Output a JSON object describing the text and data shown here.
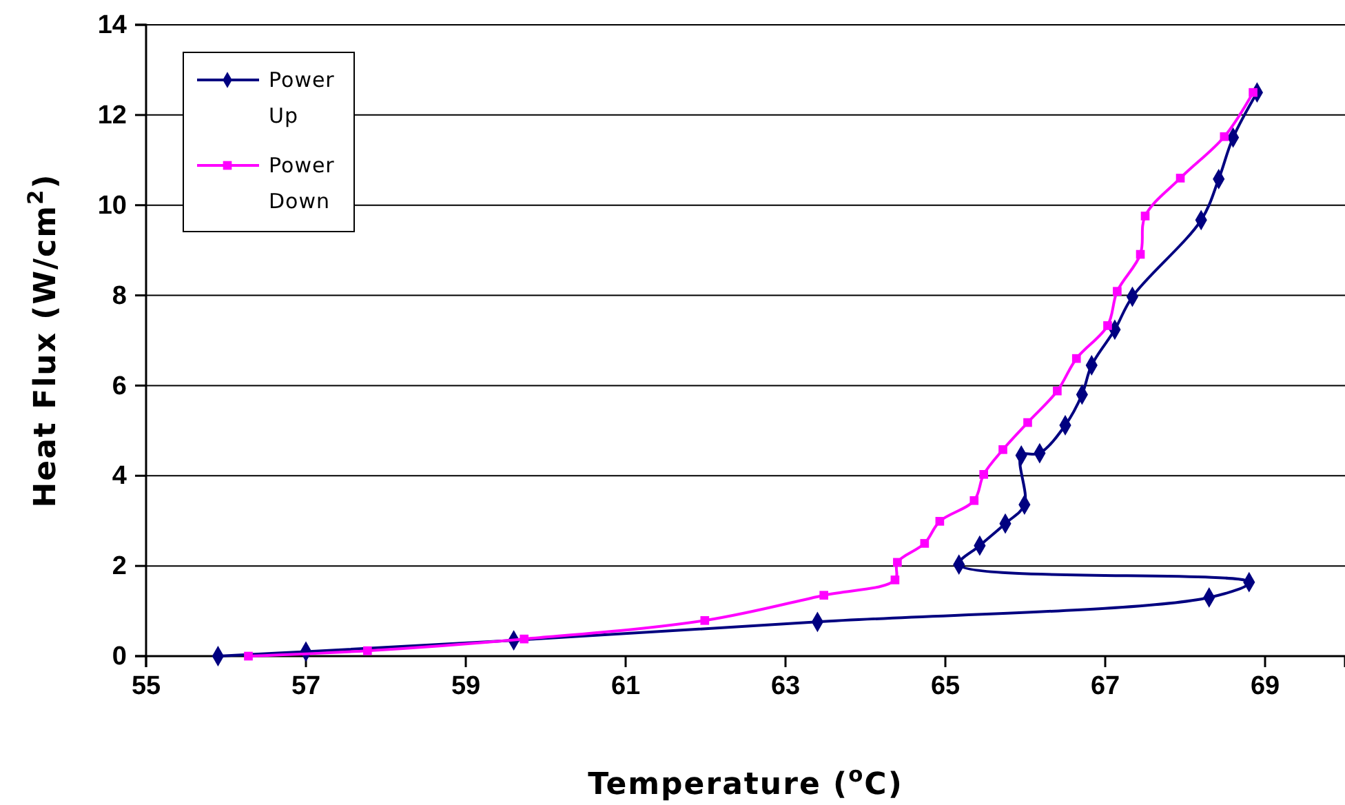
{
  "chart_data": {
    "type": "line",
    "xlabel": "Temperature ($^{o}$C)",
    "ylabel": "Heat Flux (W/cm$^{2}$)",
    "xlim": [
      55,
      70
    ],
    "xticks": [
      55,
      57,
      59,
      61,
      63,
      65,
      67,
      69
    ],
    "ylim": [
      0,
      14
    ],
    "yticks": [
      0,
      2,
      4,
      6,
      8,
      10,
      12,
      14
    ],
    "grid": "y",
    "legend": "top left",
    "line_style": "solid",
    "series": [
      {
        "name": "Power Up",
        "color": "#000080",
        "marker": "diamond",
        "x": [
          55.9,
          57.0,
          59.6,
          63.4,
          68.3,
          68.8,
          65.17,
          65.43,
          65.75,
          65.99,
          65.95,
          66.18,
          66.5,
          66.71,
          66.83,
          67.12,
          67.34,
          68.2,
          68.42,
          68.6,
          68.9
        ],
        "values": [
          0,
          0.1,
          0.35,
          0.76,
          1.3,
          1.64,
          2.03,
          2.45,
          2.94,
          3.36,
          4.45,
          4.5,
          5.12,
          5.8,
          6.45,
          7.24,
          7.97,
          9.67,
          10.58,
          11.5,
          12.5
        ]
      },
      {
        "name": "Power Down",
        "color": "#ff00ff",
        "marker": "square",
        "x": [
          56.28,
          57.77,
          59.73,
          61.99,
          63.48,
          64.37,
          64.4,
          64.74,
          64.93,
          65.36,
          65.48,
          65.72,
          66.03,
          66.4,
          66.64,
          67.03,
          67.15,
          67.44,
          67.5,
          67.94,
          68.49,
          68.85
        ],
        "values": [
          0,
          0.12,
          0.38,
          0.79,
          1.35,
          1.69,
          2.08,
          2.5,
          2.99,
          3.45,
          4.03,
          4.58,
          5.18,
          5.88,
          6.6,
          7.33,
          8.09,
          8.91,
          9.76,
          10.6,
          11.52,
          12.5
        ]
      }
    ]
  }
}
